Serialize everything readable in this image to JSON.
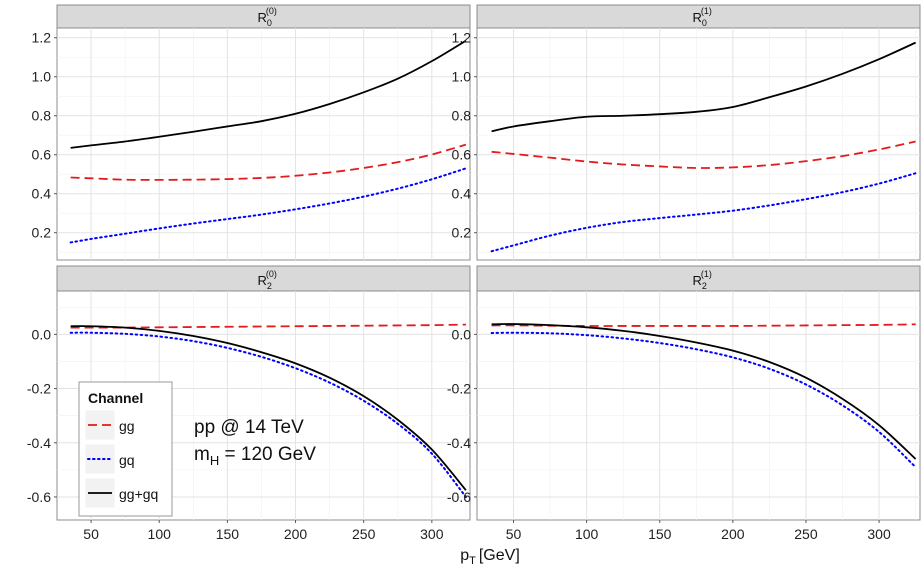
{
  "chart_data": {
    "type": "line",
    "xlabel": "p",
    "xlabel_sub": "T",
    "xlabel_unit": "[GeV]",
    "x_ticks": [
      50,
      100,
      150,
      200,
      250,
      300
    ],
    "annotation": {
      "line1": "pp @ 14 TeV",
      "line2_main": "m",
      "line2_sub": "H",
      "line2_rest": " = 120 GeV"
    },
    "legend": {
      "title": "Channel",
      "position": "inside-bottom-left",
      "entries": [
        {
          "name": "gg",
          "color": "#e41a1c",
          "dash": "dashed"
        },
        {
          "name": "gq",
          "color": "#0000ff",
          "dash": "dotted"
        },
        {
          "name": "gg+gq",
          "color": "#000000",
          "dash": "solid"
        }
      ]
    },
    "panels": [
      {
        "label_main": "R",
        "label_sub": "0",
        "label_sup": "(0)",
        "xlim": [
          25,
          328
        ],
        "ylim": [
          0.06,
          1.25
        ],
        "y_ticks": [
          0.2,
          0.4,
          0.6,
          0.8,
          1.0,
          1.2
        ],
        "y_tick_labels": [
          "0.2",
          "0.4",
          "0.6",
          "0.8",
          "1.0",
          "1.2"
        ],
        "x": [
          35,
          50,
          75,
          100,
          125,
          150,
          175,
          200,
          225,
          250,
          275,
          300,
          325
        ],
        "series": [
          {
            "name": "gg",
            "values": [
              0.483,
              0.479,
              0.472,
              0.471,
              0.472,
              0.475,
              0.481,
              0.492,
              0.509,
              0.532,
              0.562,
              0.601,
              0.652
            ]
          },
          {
            "name": "gq",
            "values": [
              0.15,
              0.168,
              0.195,
              0.222,
              0.247,
              0.27,
              0.293,
              0.32,
              0.35,
              0.385,
              0.426,
              0.474,
              0.53
            ]
          },
          {
            "name": "gg+gq",
            "values": [
              0.635,
              0.648,
              0.668,
              0.692,
              0.718,
              0.745,
              0.772,
              0.81,
              0.86,
              0.92,
              0.99,
              1.08,
              1.185
            ]
          }
        ]
      },
      {
        "label_main": "R",
        "label_sub": "0",
        "label_sup": "(1)",
        "xlim": [
          25,
          328
        ],
        "ylim": [
          0.06,
          1.25
        ],
        "y_ticks": [
          0.2,
          0.4,
          0.6,
          0.8,
          1.0,
          1.2
        ],
        "y_tick_labels": [
          "0.2",
          "0.4",
          "0.6",
          "0.8",
          "1.0",
          "1.2"
        ],
        "x": [
          35,
          50,
          75,
          100,
          125,
          150,
          175,
          200,
          225,
          250,
          275,
          300,
          325
        ],
        "series": [
          {
            "name": "gg",
            "values": [
              0.615,
              0.604,
              0.585,
              0.565,
              0.55,
              0.54,
              0.532,
              0.535,
              0.547,
              0.567,
              0.593,
              0.627,
              0.668
            ]
          },
          {
            "name": "gq",
            "values": [
              0.105,
              0.135,
              0.185,
              0.225,
              0.255,
              0.275,
              0.293,
              0.313,
              0.34,
              0.372,
              0.408,
              0.452,
              0.505
            ]
          },
          {
            "name": "gg+gq",
            "values": [
              0.72,
              0.745,
              0.772,
              0.795,
              0.8,
              0.808,
              0.82,
              0.845,
              0.895,
              0.95,
              1.015,
              1.09,
              1.175
            ]
          }
        ]
      },
      {
        "label_main": "R",
        "label_sub": "2",
        "label_sup": "(0)",
        "xlim": [
          25,
          328
        ],
        "ylim": [
          -0.685,
          0.16
        ],
        "y_ticks": [
          -0.6,
          -0.4,
          -0.2,
          0.0
        ],
        "y_tick_labels": [
          "-0.6",
          "-0.4",
          "-0.2",
          "0.0"
        ],
        "x": [
          35,
          50,
          75,
          100,
          125,
          150,
          175,
          200,
          225,
          250,
          275,
          300,
          325
        ],
        "series": [
          {
            "name": "gg",
            "values": [
              0.025,
              0.025,
              0.025,
              0.026,
              0.027,
              0.028,
              0.029,
              0.03,
              0.031,
              0.032,
              0.033,
              0.034,
              0.036
            ]
          },
          {
            "name": "gq",
            "values": [
              0.006,
              0.006,
              0.002,
              -0.008,
              -0.025,
              -0.05,
              -0.083,
              -0.125,
              -0.178,
              -0.245,
              -0.33,
              -0.44,
              -0.6
            ]
          },
          {
            "name": "gg+gq",
            "values": [
              0.03,
              0.03,
              0.025,
              0.013,
              -0.006,
              -0.032,
              -0.066,
              -0.107,
              -0.16,
              -0.228,
              -0.315,
              -0.425,
              -0.575
            ]
          }
        ]
      },
      {
        "label_main": "R",
        "label_sub": "2",
        "label_sup": "(1)",
        "xlim": [
          25,
          328
        ],
        "ylim": [
          -0.685,
          0.16
        ],
        "y_ticks": [
          -0.6,
          -0.4,
          -0.2,
          0.0
        ],
        "y_tick_labels": [
          "-0.6",
          "-0.4",
          "-0.2",
          "0.0"
        ],
        "x": [
          35,
          50,
          75,
          100,
          125,
          150,
          175,
          200,
          225,
          250,
          275,
          300,
          325
        ],
        "series": [
          {
            "name": "gg",
            "values": [
              0.033,
              0.033,
              0.032,
              0.031,
              0.031,
              0.031,
              0.031,
              0.031,
              0.032,
              0.033,
              0.034,
              0.035,
              0.037
            ]
          },
          {
            "name": "gq",
            "values": [
              0.005,
              0.006,
              0.004,
              -0.003,
              -0.015,
              -0.032,
              -0.055,
              -0.085,
              -0.127,
              -0.185,
              -0.262,
              -0.36,
              -0.49
            ]
          },
          {
            "name": "gg+gq",
            "values": [
              0.037,
              0.038,
              0.034,
              0.026,
              0.013,
              -0.006,
              -0.03,
              -0.06,
              -0.102,
              -0.16,
              -0.238,
              -0.335,
              -0.46
            ]
          }
        ]
      }
    ]
  }
}
